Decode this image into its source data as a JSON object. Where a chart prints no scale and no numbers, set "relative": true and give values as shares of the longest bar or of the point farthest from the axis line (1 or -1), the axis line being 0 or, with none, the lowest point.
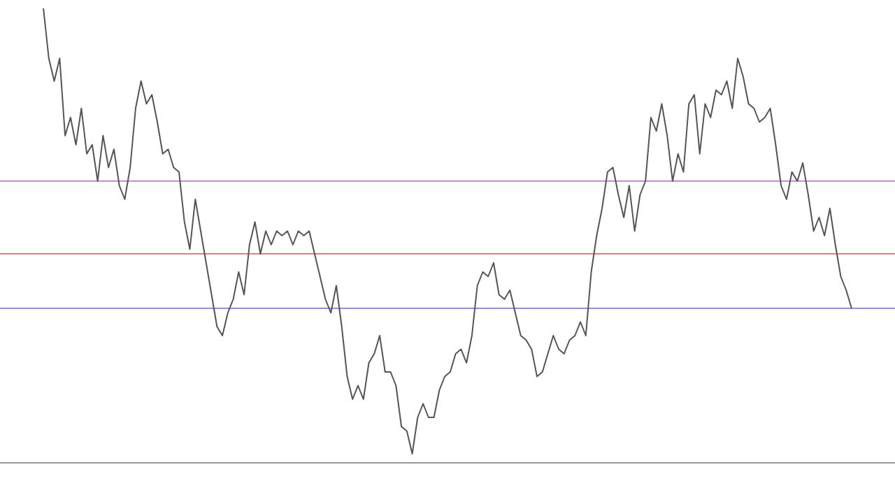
{
  "chart_data": {
    "type": "line",
    "relative": true,
    "grid": false,
    "legend": false,
    "marker": "none",
    "line_style": "solid",
    "categories": [
      null,
      null,
      null,
      null,
      null,
      null,
      null,
      null,
      null,
      null,
      null,
      null,
      null,
      null,
      null,
      null,
      null,
      null,
      null,
      null,
      null,
      null,
      null,
      null,
      null,
      null,
      null,
      null,
      null,
      null,
      null,
      null,
      null,
      null,
      null,
      null,
      null,
      null,
      null,
      null,
      null,
      null,
      null,
      null,
      null,
      null,
      null,
      null,
      null,
      null,
      null,
      null,
      null,
      null,
      null,
      null,
      null,
      null,
      null,
      null,
      null,
      null,
      null,
      null,
      null,
      null,
      null,
      null,
      null,
      null,
      null,
      null,
      null,
      null,
      null,
      null,
      null,
      null,
      null,
      null,
      null,
      null,
      null,
      null,
      null,
      null,
      null,
      null,
      null,
      null,
      null,
      null,
      null,
      null,
      null,
      null,
      null,
      null,
      null,
      null,
      null,
      null,
      null,
      null,
      null,
      null,
      null,
      null,
      null,
      null,
      null,
      null,
      null,
      null,
      null,
      null,
      null,
      null,
      null,
      null,
      null,
      null,
      null,
      null,
      null,
      null,
      null,
      null,
      null,
      null,
      null,
      null,
      null,
      null,
      null,
      null,
      null,
      null,
      null,
      null,
      null,
      null,
      null,
      null,
      null,
      null,
      null,
      null,
      null,
      null,
      null,
      null,
      null,
      null,
      null,
      null,
      null,
      null,
      null,
      null,
      null,
      null,
      null,
      null,
      null,
      null
    ],
    "series": [
      {
        "color": "#555555",
        "values": [
          null,
          null,
          null,
          null,
          null,
          null,
          null,
          null,
          1.0,
          0.89,
          0.84,
          0.89,
          0.72,
          0.76,
          0.7,
          0.78,
          0.68,
          0.7,
          0.62,
          0.72,
          0.65,
          0.69,
          0.61,
          0.58,
          0.65,
          0.78,
          0.84,
          0.79,
          0.81,
          0.75,
          0.68,
          0.69,
          0.65,
          0.64,
          0.53,
          0.47,
          0.58,
          0.51,
          0.44,
          0.37,
          0.3,
          0.28,
          0.33,
          0.36,
          0.42,
          0.37,
          0.48,
          0.53,
          0.46,
          0.51,
          0.48,
          0.51,
          0.5,
          0.51,
          0.48,
          0.51,
          0.5,
          0.51,
          0.46,
          0.41,
          0.36,
          0.33,
          0.39,
          0.3,
          0.19,
          0.14,
          0.17,
          0.14,
          0.22,
          0.24,
          0.28,
          0.2,
          0.2,
          0.17,
          0.08,
          0.07,
          0.02,
          0.1,
          0.13,
          0.1,
          0.1,
          0.16,
          0.19,
          0.2,
          0.24,
          0.25,
          0.22,
          0.28,
          0.39,
          0.42,
          0.41,
          0.44,
          0.37,
          0.36,
          0.38,
          0.33,
          0.28,
          0.27,
          0.25,
          0.19,
          0.2,
          0.24,
          0.28,
          0.25,
          0.24,
          0.27,
          0.28,
          0.31,
          0.28,
          0.42,
          0.5,
          0.56,
          0.64,
          0.65,
          0.59,
          0.54,
          0.61,
          0.51,
          0.59,
          0.62,
          0.76,
          0.73,
          0.79,
          0.72,
          0.62,
          0.68,
          0.64,
          0.79,
          0.81,
          0.68,
          0.79,
          0.76,
          0.82,
          0.81,
          0.84,
          0.78,
          0.89,
          0.85,
          0.79,
          0.78,
          0.75,
          0.76,
          0.78,
          0.7,
          0.61,
          0.58,
          0.64,
          0.62,
          0.66,
          0.59,
          0.51,
          0.54,
          0.5,
          0.56,
          0.48,
          0.41,
          0.38,
          0.34,
          null,
          null,
          null,
          null,
          null,
          null,
          null,
          null
        ]
      }
    ],
    "ref_lines": [
      {
        "axis": "y",
        "value": 0.62,
        "color": "#c58fd6"
      },
      {
        "axis": "y",
        "value": 0.46,
        "color": "#e08080"
      },
      {
        "axis": "y",
        "value": 0.34,
        "color": "#8f8fe6"
      }
    ]
  }
}
